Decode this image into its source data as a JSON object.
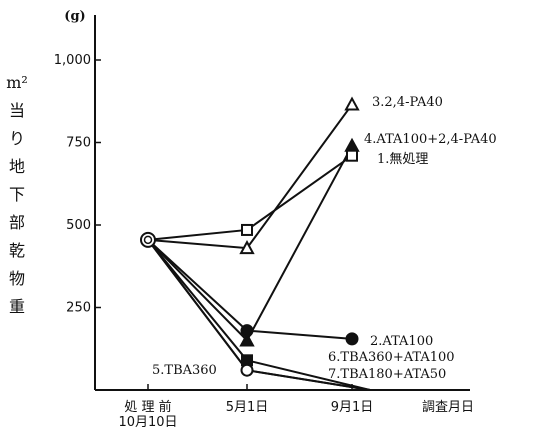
{
  "chart_data": {
    "type": "line",
    "y_unit": "(g)",
    "ylabel": [
      "m²",
      "当",
      "り",
      "地",
      "下",
      "部",
      "乾",
      "物",
      "重"
    ],
    "ylim": [
      0,
      1000
    ],
    "yticks": [
      250,
      500,
      750,
      1000
    ],
    "ytick_labels": [
      "250",
      "500",
      "750",
      "1,000"
    ],
    "categories": [
      {
        "line1": "処 理 前",
        "line2": "10月10日"
      },
      {
        "line1": "5月1日",
        "line2": ""
      },
      {
        "line1": "9月1日",
        "line2": ""
      }
    ],
    "x_extra_label": "調査月日",
    "series": [
      {
        "name": "3.2,4-PA40",
        "marker": "triangle-open",
        "values": [
          455,
          430,
          865
        ]
      },
      {
        "name": "4.ATA100+2,4-PA40",
        "marker": "triangle-filled",
        "values": [
          455,
          150,
          740
        ]
      },
      {
        "name": "1.無処理",
        "marker": "square-open",
        "values": [
          455,
          485,
          710
        ]
      },
      {
        "name": "2.ATA100",
        "marker": "circle-filled",
        "values": [
          455,
          180,
          155
        ]
      },
      {
        "name": "6.TBA360+ATA100",
        "marker": "square-filled",
        "values": [
          455,
          90,
          0
        ]
      },
      {
        "name": "7.TBA180+ATA50",
        "marker": "circle-open",
        "values": [
          455,
          60,
          0
        ]
      },
      {
        "name": "5.TBA360",
        "marker": "none",
        "values": [
          455,
          60,
          0
        ]
      }
    ]
  }
}
